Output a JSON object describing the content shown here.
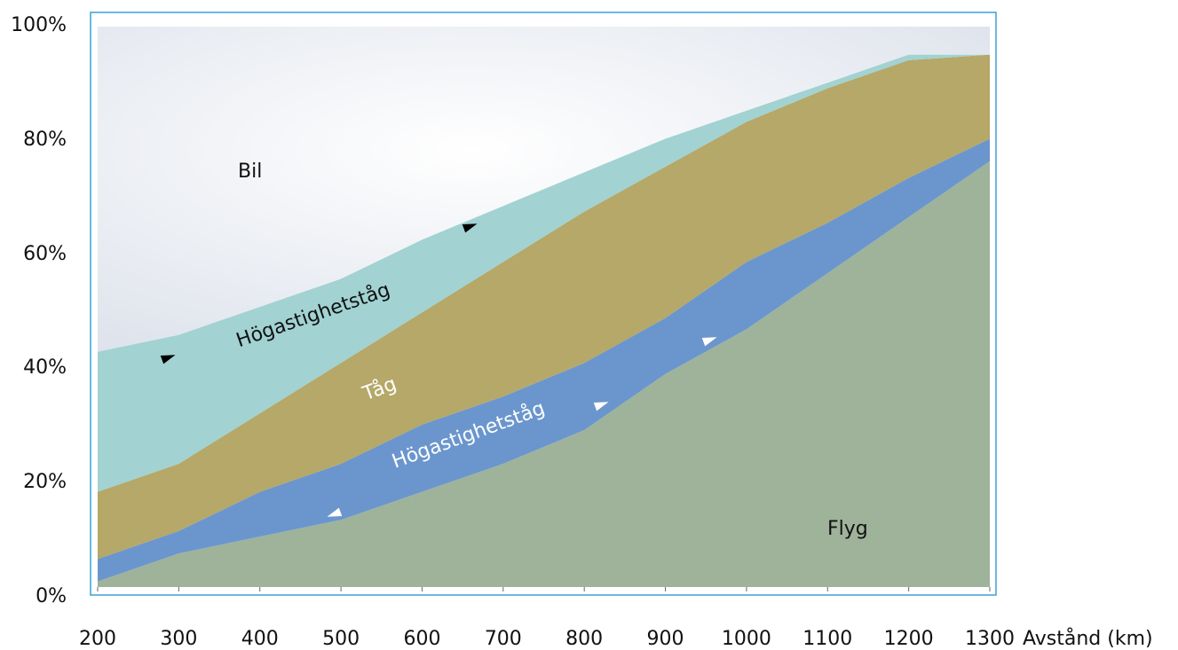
{
  "chart_data": {
    "type": "area",
    "stacked": true,
    "x": [
      200,
      300,
      400,
      500,
      600,
      700,
      800,
      900,
      1000,
      1100,
      1200,
      1300
    ],
    "xlabel": "Avstånd (km)",
    "x_tick_labels": [
      "200",
      "300",
      "400",
      "500",
      "600",
      "700",
      "800",
      "900",
      "1000",
      "1100",
      "1200",
      "1300"
    ],
    "xlim": [
      200,
      1300
    ],
    "ylim": [
      0,
      100
    ],
    "y_tick_labels": [
      "0%",
      "20%",
      "40%",
      "60%",
      "80%",
      "100%"
    ],
    "y_ticks": [
      0,
      20,
      40,
      60,
      80,
      100
    ],
    "grid": false,
    "legend": "none",
    "series_boundaries": {
      "flyg_top": [
        1,
        6,
        9,
        12,
        17,
        22,
        28,
        38,
        46,
        56,
        66,
        76
      ],
      "hst_low_top": [
        5,
        10,
        17,
        22,
        29,
        34,
        40,
        48,
        58,
        65,
        73,
        80
      ],
      "tag_top": [
        17,
        22,
        31,
        40,
        49,
        58,
        67,
        75,
        83,
        89,
        94,
        95
      ],
      "hst_high_top": [
        42,
        45,
        50,
        55,
        62,
        68,
        74,
        80,
        85,
        90,
        95,
        95
      ]
    },
    "areas": [
      {
        "name": "Flyg",
        "color": "#9eb39a"
      },
      {
        "name": "Högastighetståg",
        "color": "#6b96cd"
      },
      {
        "name": "Tåg",
        "color": "#b5a868"
      },
      {
        "name": "Högastighetståg",
        "color": "#a2d2d2"
      },
      {
        "name": "Bil",
        "color": "#e2e6ee"
      }
    ],
    "annotations": [
      {
        "text": "Bil",
        "color": "#111111"
      },
      {
        "text": "Högastighetståg",
        "color": "#111111"
      },
      {
        "text": "Tåg",
        "color": "#ffffff"
      },
      {
        "text": "Högastighetståg",
        "color": "#ffffff"
      },
      {
        "text": "Flyg",
        "color": "#111111"
      }
    ],
    "frame_color": "#3aa0d8"
  }
}
